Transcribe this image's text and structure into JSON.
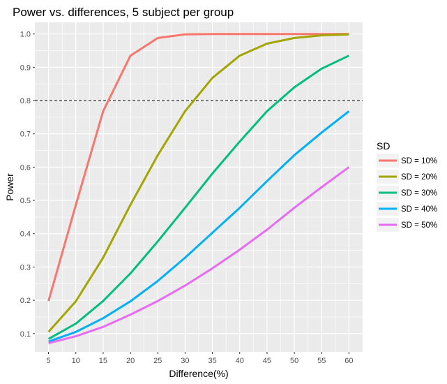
{
  "chart_data": {
    "type": "line",
    "title": "Power vs. differences, 5 subject per group",
    "xlabel": "Difference(%)",
    "ylabel": "Power",
    "x": [
      5,
      10,
      15,
      20,
      25,
      30,
      35,
      40,
      45,
      50,
      55,
      60
    ],
    "x_ticks": [
      "5",
      "10",
      "15",
      "20",
      "25",
      "30",
      "35",
      "40",
      "45",
      "50",
      "55",
      "60"
    ],
    "y_ticks": [
      "0.1",
      "0.2",
      "0.3",
      "0.4",
      "0.5",
      "0.6",
      "0.7",
      "0.8",
      "0.9",
      "1.0"
    ],
    "xlim": [
      2.5,
      62.5
    ],
    "ylim": [
      0.045,
      1.035
    ],
    "grid": true,
    "legend": {
      "title": "SD",
      "position": "right"
    },
    "reference_line": {
      "y": 0.8,
      "style": "dashed"
    },
    "series": [
      {
        "name": "SD = 10%",
        "color": "#F8766D",
        "values": [
          0.198,
          0.487,
          0.768,
          0.935,
          0.988,
          0.999,
          1.0,
          1.0,
          1.0,
          1.0,
          1.0,
          1.0
        ]
      },
      {
        "name": "SD = 20%",
        "color": "#A3A500",
        "values": [
          0.105,
          0.197,
          0.328,
          0.487,
          0.636,
          0.768,
          0.868,
          0.935,
          0.971,
          0.988,
          0.996,
          0.999
        ]
      },
      {
        "name": "SD = 30%",
        "color": "#00BF7D",
        "values": [
          0.084,
          0.13,
          0.198,
          0.281,
          0.377,
          0.478,
          0.581,
          0.677,
          0.768,
          0.84,
          0.896,
          0.935
        ]
      },
      {
        "name": "SD = 40%",
        "color": "#00B0F6",
        "values": [
          0.076,
          0.105,
          0.146,
          0.197,
          0.258,
          0.328,
          0.403,
          0.478,
          0.558,
          0.636,
          0.704,
          0.768
        ]
      },
      {
        "name": "SD = 50%",
        "color": "#E76BF3",
        "values": [
          0.071,
          0.092,
          0.12,
          0.157,
          0.198,
          0.244,
          0.296,
          0.352,
          0.412,
          0.478,
          0.54,
          0.6
        ]
      }
    ]
  }
}
